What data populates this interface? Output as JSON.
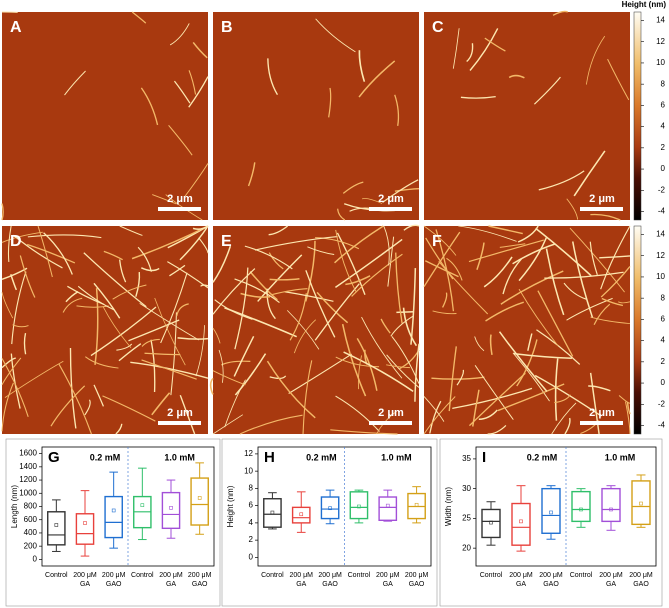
{
  "afm_panels": [
    {
      "label": "A",
      "scale_bar": "2 μm"
    },
    {
      "label": "B",
      "scale_bar": "2 μm"
    },
    {
      "label": "C",
      "scale_bar": "2 μm"
    },
    {
      "label": "D",
      "scale_bar": "2 μm"
    },
    {
      "label": "E",
      "scale_bar": "2 μm"
    },
    {
      "label": "F",
      "scale_bar": "2 μm"
    }
  ],
  "colorbar": {
    "title": "Height (nm)",
    "range": [
      -4.8,
      14.8
    ],
    "ticks": [
      14,
      12,
      10,
      8,
      6,
      4,
      2,
      0,
      -2,
      -4
    ]
  },
  "chart_data": [
    {
      "type": "box",
      "panel": "G",
      "y_label": "Length (nm)",
      "annotations": [
        "0.2 mM",
        "1.0 mM"
      ],
      "categories": [
        "Control",
        "200 μM\nGA",
        "200 μM\nGAO",
        "Control",
        "200 μM\nGA",
        "200 μM\nGAO"
      ],
      "colors": [
        "#333333",
        "#e8413c",
        "#1f6fd1",
        "#2fbf6a",
        "#a24fd8",
        "#d4a017"
      ],
      "whisker_low": [
        120,
        50,
        170,
        300,
        320,
        380
      ],
      "q1": [
        220,
        230,
        330,
        480,
        470,
        520
      ],
      "median": [
        370,
        390,
        560,
        720,
        680,
        830
      ],
      "q3": [
        720,
        690,
        950,
        950,
        1010,
        1230
      ],
      "whisker_high": [
        900,
        1040,
        1320,
        1380,
        1200,
        1460
      ],
      "mean": [
        520,
        550,
        740,
        820,
        780,
        930
      ],
      "ylim": [
        -100,
        1700
      ],
      "yticks": [
        0,
        200,
        400,
        600,
        800,
        1000,
        1200,
        1400,
        1600
      ]
    },
    {
      "type": "box",
      "panel": "H",
      "y_label": "Height (nm)",
      "annotations": [
        "0.2 mM",
        "1.0 mM"
      ],
      "categories": [
        "Control",
        "200 μM\nGA",
        "200 μM\nGAO",
        "Control",
        "200 μM\nGA",
        "200 μM\nGAO"
      ],
      "colors": [
        "#333333",
        "#e8413c",
        "#1f6fd1",
        "#2fbf6a",
        "#a24fd8",
        "#d4a017"
      ],
      "whisker_low": [
        3.3,
        2.9,
        3.9,
        4.0,
        4.2,
        4.0
      ],
      "q1": [
        3.5,
        4.0,
        4.5,
        4.5,
        4.3,
        4.5
      ],
      "median": [
        5.0,
        4.6,
        5.6,
        5.8,
        5.8,
        5.9
      ],
      "q3": [
        6.8,
        5.8,
        7.0,
        7.6,
        7.0,
        7.4
      ],
      "whisker_high": [
        7.5,
        7.6,
        7.8,
        7.8,
        7.8,
        8.2
      ],
      "mean": [
        5.2,
        5.0,
        5.7,
        5.9,
        6.0,
        6.1
      ],
      "ylim": [
        -1,
        12.8
      ],
      "yticks": [
        0,
        2,
        4,
        6,
        8,
        10,
        12
      ]
    },
    {
      "type": "box",
      "panel": "I",
      "y_label": "Width (nm)",
      "annotations": [
        "0.2 mM",
        "1.0 mM"
      ],
      "categories": [
        "Control",
        "200 μM\nGA",
        "200 μM\nGAO",
        "Control",
        "200 μM\nGA",
        "200 μM\nGAO"
      ],
      "colors": [
        "#333333",
        "#e8413c",
        "#1f6fd1",
        "#2fbf6a",
        "#a24fd8",
        "#d4a017"
      ],
      "whisker_low": [
        20.5,
        19.5,
        21.5,
        23.5,
        23.0,
        23.5
      ],
      "q1": [
        21.8,
        20.5,
        22.5,
        24.5,
        24.5,
        24.0
      ],
      "median": [
        24.5,
        23.5,
        25.5,
        26.5,
        26.5,
        27.0
      ],
      "q3": [
        26.5,
        27.5,
        30.0,
        29.5,
        30.0,
        31.3
      ],
      "whisker_high": [
        27.8,
        30.5,
        30.5,
        30.0,
        30.5,
        32.3
      ],
      "mean": [
        24.3,
        24.5,
        26.0,
        26.5,
        26.5,
        27.5
      ],
      "ylim": [
        17,
        37
      ],
      "yticks": [
        20,
        25,
        30,
        35
      ]
    }
  ]
}
